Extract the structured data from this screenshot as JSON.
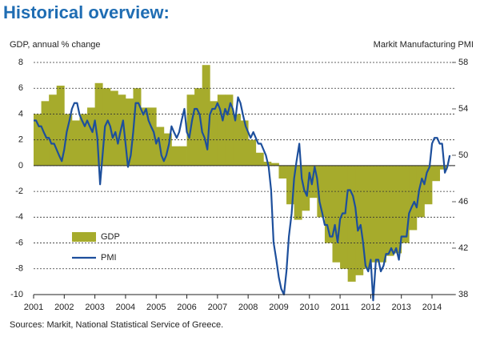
{
  "chart_data": {
    "type": "bar-line",
    "title": "Historical overview:",
    "y_label": "GDP, annual % change",
    "y2_label": "Markit Manufacturing PMI",
    "source": "Sources: Markit, National Statistical Service of Greece.",
    "xlim": [
      2001,
      2014.6
    ],
    "xticks": [
      2001,
      2002,
      2003,
      2004,
      2005,
      2006,
      2007,
      2008,
      2009,
      2010,
      2011,
      2012,
      2013,
      2014
    ],
    "ylim": [
      -10,
      8
    ],
    "yticks": [
      -10,
      -8,
      -6,
      -4,
      -2,
      0,
      2,
      4,
      6,
      8
    ],
    "y2lim": [
      38,
      58
    ],
    "y2ticks": [
      38,
      42,
      46,
      50,
      54,
      58
    ],
    "grid": true,
    "legend": "lower-left",
    "series": [
      {
        "name": "GDP",
        "type": "bar",
        "color": "#a6ab2c",
        "x": [
          2001,
          2001.25,
          2001.5,
          2001.75,
          2002,
          2002.25,
          2002.5,
          2002.75,
          2003,
          2003.25,
          2003.5,
          2003.75,
          2004,
          2004.25,
          2004.5,
          2004.75,
          2005,
          2005.25,
          2005.5,
          2005.75,
          2006,
          2006.25,
          2006.5,
          2006.75,
          2007,
          2007.25,
          2007.5,
          2007.75,
          2008,
          2008.25,
          2008.5,
          2008.75,
          2009,
          2009.25,
          2009.5,
          2009.75,
          2010,
          2010.25,
          2010.5,
          2010.75,
          2011,
          2011.25,
          2011.5,
          2011.75,
          2012,
          2012.25,
          2012.5,
          2012.75,
          2013,
          2013.25,
          2013.5,
          2013.75,
          2014,
          2014.25
        ],
        "values": [
          4,
          5,
          5.5,
          6.2,
          4,
          3.5,
          4,
          4.5,
          6.4,
          6,
          5.8,
          5.5,
          5.2,
          6,
          4.5,
          4.5,
          3,
          2.5,
          1.5,
          1.5,
          5.5,
          6,
          7.8,
          5,
          5.5,
          5.5,
          4,
          3.5,
          2,
          1,
          0.3,
          0.2,
          -1,
          -3,
          -4.2,
          -3.5,
          -2.5,
          -4,
          -6,
          -7.5,
          -8,
          -9,
          -8.5,
          -8,
          -7.5,
          -7.5,
          -7,
          -6.8,
          -6,
          -5,
          -4,
          -3,
          -1.2,
          -0.3
        ]
      },
      {
        "name": "PMI",
        "type": "line",
        "axis": "y2",
        "color": "#1d4f9c",
        "x": [
          2001,
          2001.08,
          2001.17,
          2001.25,
          2001.33,
          2001.42,
          2001.5,
          2001.58,
          2001.67,
          2001.75,
          2001.83,
          2001.92,
          2002,
          2002.08,
          2002.17,
          2002.25,
          2002.33,
          2002.42,
          2002.5,
          2002.58,
          2002.67,
          2002.75,
          2002.83,
          2002.92,
          2003,
          2003.08,
          2003.17,
          2003.25,
          2003.33,
          2003.42,
          2003.5,
          2003.58,
          2003.67,
          2003.75,
          2003.83,
          2003.92,
          2004,
          2004.08,
          2004.17,
          2004.25,
          2004.33,
          2004.42,
          2004.5,
          2004.58,
          2004.67,
          2004.75,
          2004.83,
          2004.92,
          2005,
          2005.08,
          2005.17,
          2005.25,
          2005.33,
          2005.42,
          2005.5,
          2005.58,
          2005.67,
          2005.75,
          2005.83,
          2005.92,
          2006,
          2006.08,
          2006.17,
          2006.25,
          2006.33,
          2006.42,
          2006.5,
          2006.58,
          2006.67,
          2006.75,
          2006.83,
          2006.92,
          2007,
          2007.08,
          2007.17,
          2007.25,
          2007.33,
          2007.42,
          2007.5,
          2007.58,
          2007.67,
          2007.75,
          2007.83,
          2007.92,
          2008,
          2008.08,
          2008.17,
          2008.25,
          2008.33,
          2008.42,
          2008.5,
          2008.58,
          2008.67,
          2008.75,
          2008.83,
          2008.92,
          2009,
          2009.08,
          2009.17,
          2009.25,
          2009.33,
          2009.42,
          2009.5,
          2009.58,
          2009.67,
          2009.75,
          2009.83,
          2009.92,
          2010,
          2010.08,
          2010.17,
          2010.25,
          2010.33,
          2010.42,
          2010.5,
          2010.58,
          2010.67,
          2010.75,
          2010.83,
          2010.92,
          2011,
          2011.08,
          2011.17,
          2011.25,
          2011.33,
          2011.42,
          2011.5,
          2011.58,
          2011.67,
          2011.75,
          2011.83,
          2011.92,
          2012,
          2012.08,
          2012.17,
          2012.25,
          2012.33,
          2012.42,
          2012.5,
          2012.58,
          2012.67,
          2012.75,
          2012.83,
          2012.92,
          2013,
          2013.08,
          2013.17,
          2013.25,
          2013.33,
          2013.42,
          2013.5,
          2013.58,
          2013.67,
          2013.75,
          2013.83,
          2013.92,
          2014,
          2014.08,
          2014.17,
          2014.25,
          2014.33,
          2014.42,
          2014.5,
          2014.58
        ],
        "values": [
          53,
          53,
          52.5,
          52.5,
          52,
          51.5,
          51.5,
          51,
          51,
          50.5,
          50,
          49.5,
          50.5,
          52,
          53,
          54,
          54.5,
          54.5,
          53.5,
          53,
          52.5,
          53,
          52.5,
          52,
          53,
          51.5,
          47.5,
          50,
          52.5,
          53,
          52.5,
          51.5,
          52,
          51,
          52,
          53,
          51,
          49,
          50,
          52,
          54.5,
          54.5,
          54,
          53.5,
          54,
          53,
          52.5,
          52,
          51,
          51.5,
          50,
          49.5,
          50,
          51,
          52.5,
          52,
          51.5,
          52,
          53,
          54,
          52,
          51.5,
          53,
          54,
          54,
          53.5,
          52,
          51.5,
          50.5,
          53.5,
          54,
          54,
          54.5,
          54,
          53,
          54,
          53.5,
          54.5,
          54,
          53,
          55,
          54.5,
          53.5,
          52.5,
          52,
          51.5,
          52,
          51.5,
          51,
          51,
          50.5,
          50,
          49,
          47,
          42.5,
          41,
          39.5,
          38.5,
          38,
          40,
          43,
          45,
          48,
          49.5,
          51,
          48,
          47,
          46.5,
          48.5,
          47.5,
          49,
          48,
          46,
          45,
          44,
          44,
          43,
          43,
          44,
          42.5,
          44.5,
          45,
          45,
          47,
          47,
          46.5,
          45.5,
          43.5,
          44,
          42.5,
          40.5,
          40,
          41,
          37.5,
          41,
          41,
          40,
          40.5,
          41.5,
          41.5,
          42,
          41.5,
          42,
          41,
          43,
          43,
          43,
          45,
          45.5,
          46,
          45.5,
          47,
          48,
          47.5,
          48.5,
          49,
          51,
          51.5,
          51.5,
          51,
          51,
          48.5,
          49,
          50
        ]
      }
    ]
  }
}
